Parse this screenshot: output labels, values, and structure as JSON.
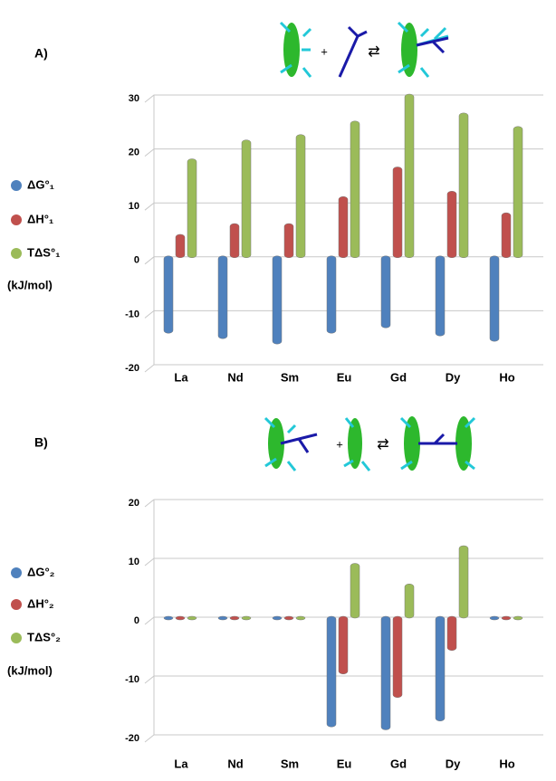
{
  "chart_data": [
    {
      "type": "bar",
      "label": "A)",
      "scheme_text": [
        "+",
        "⇄"
      ],
      "unit": "(kJ/mol)",
      "categories": [
        "La",
        "Nd",
        "Sm",
        "Eu",
        "Gd",
        "Dy",
        "Ho"
      ],
      "series": [
        {
          "name": "ΔG°₁",
          "color": "#4f81bd",
          "values": [
            -14,
            -15,
            -16,
            -14,
            -13,
            -14.5,
            -15.5
          ]
        },
        {
          "name": "ΔH°₁",
          "color": "#c0504d",
          "values": [
            4,
            6,
            6,
            11,
            16.5,
            12,
            8
          ]
        },
        {
          "name": "TΔS°₁",
          "color": "#9bbb59",
          "values": [
            18,
            21.5,
            22.5,
            25,
            30,
            26.5,
            24
          ]
        }
      ],
      "ylim": [
        -20,
        30
      ],
      "yticks": [
        -20,
        -10,
        0,
        10,
        20,
        30
      ],
      "grid": true
    },
    {
      "type": "bar",
      "label": "B)",
      "scheme_text": [
        "+",
        "⇄"
      ],
      "unit": "(kJ/mol)",
      "categories": [
        "La",
        "Nd",
        "Sm",
        "Eu",
        "Gd",
        "Dy",
        "Ho"
      ],
      "series": [
        {
          "name": "ΔG°₂",
          "color": "#4f81bd",
          "values": [
            0,
            0,
            0,
            -18.5,
            -19,
            -17.5,
            0
          ]
        },
        {
          "name": "ΔH°₂",
          "color": "#c0504d",
          "values": [
            0,
            0,
            0,
            -9.5,
            -13.5,
            -5.5,
            0
          ]
        },
        {
          "name": "TΔS°₂",
          "color": "#9bbb59",
          "values": [
            0,
            0,
            0,
            9,
            5.5,
            12,
            0
          ]
        }
      ],
      "ylim": [
        -20,
        20
      ],
      "yticks": [
        -20,
        -10,
        0,
        10,
        20
      ],
      "grid": true
    }
  ]
}
